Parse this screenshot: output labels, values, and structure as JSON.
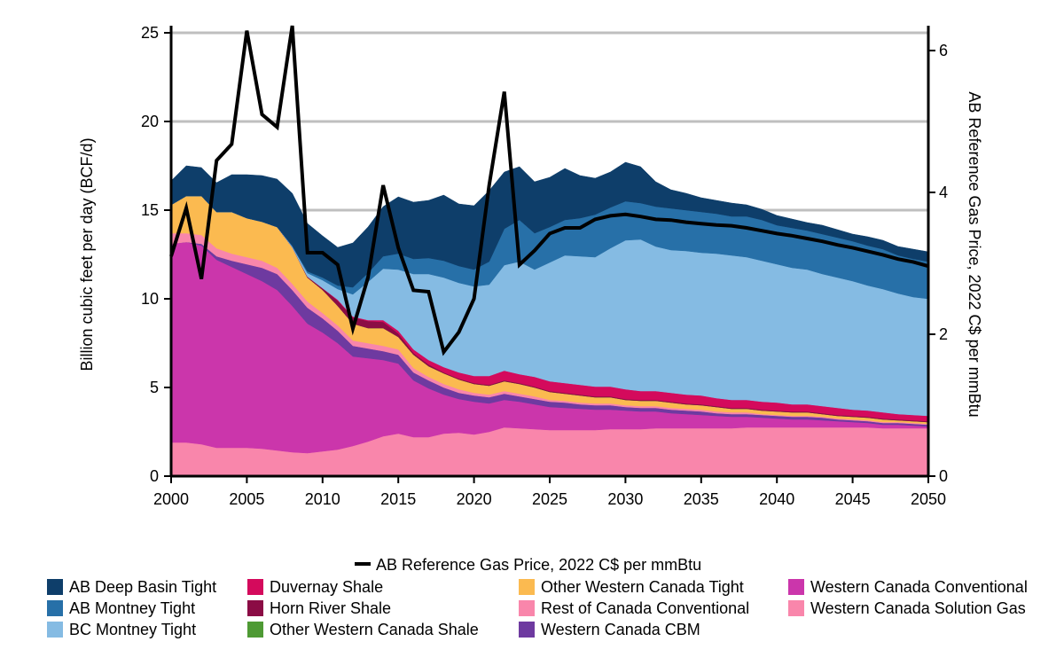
{
  "chart_data": {
    "type": "area",
    "x": [
      2000,
      2001,
      2002,
      2003,
      2004,
      2005,
      2006,
      2007,
      2008,
      2009,
      2010,
      2011,
      2012,
      2013,
      2014,
      2015,
      2016,
      2017,
      2018,
      2019,
      2020,
      2021,
      2022,
      2023,
      2024,
      2025,
      2026,
      2027,
      2028,
      2029,
      2030,
      2031,
      2032,
      2033,
      2034,
      2035,
      2036,
      2037,
      2038,
      2039,
      2040,
      2041,
      2042,
      2043,
      2044,
      2045,
      2046,
      2047,
      2048,
      2049,
      2050
    ],
    "xticks": [
      2000,
      2005,
      2010,
      2015,
      2020,
      2025,
      2030,
      2035,
      2040,
      2045,
      2050
    ],
    "xlim": [
      2000,
      2050
    ],
    "ylim": [
      0,
      25
    ],
    "yticks": [
      0,
      5,
      10,
      15,
      20,
      25
    ],
    "y2lim": [
      0,
      6.25
    ],
    "y2ticks": [
      0,
      2,
      4,
      6
    ],
    "ylabel": "Billion cubic feet per day (BCF/d)",
    "y2label": "AB Reference Gas Price, 2022 C$ per mmBtu",
    "grid": "horizontal",
    "legend_position": "bottom",
    "line_legend": "AB Reference Gas Price, 2022 C$ per mmBtu",
    "line_color": "#000000",
    "series": [
      {
        "name": "Western Canada Solution Gas",
        "color": "#F986AB",
        "values": [
          1.9,
          1.9,
          1.8,
          1.6,
          1.6,
          1.6,
          1.55,
          1.45,
          1.35,
          1.3,
          1.4,
          1.5,
          1.7,
          1.95,
          2.25,
          2.4,
          2.2,
          2.2,
          2.4,
          2.45,
          2.35,
          2.5,
          2.75,
          2.7,
          2.65,
          2.6,
          2.6,
          2.6,
          2.6,
          2.65,
          2.65,
          2.65,
          2.7,
          2.7,
          2.7,
          2.7,
          2.7,
          2.7,
          2.75,
          2.75,
          2.75,
          2.75,
          2.75,
          2.75,
          2.75,
          2.75,
          2.75,
          2.7,
          2.7,
          2.7,
          2.7
        ]
      },
      {
        "name": "Western Canada Conventional",
        "color": "#CB36AB",
        "values": [
          11.2,
          11.3,
          11.2,
          10.6,
          10.2,
          9.8,
          9.45,
          9.05,
          8.25,
          7.3,
          6.7,
          6.0,
          5.05,
          4.7,
          4.3,
          3.95,
          3.2,
          2.75,
          2.2,
          1.9,
          1.85,
          1.6,
          1.55,
          1.5,
          1.4,
          1.3,
          1.25,
          1.2,
          1.15,
          1.1,
          1.05,
          1.0,
          0.95,
          0.85,
          0.8,
          0.75,
          0.7,
          0.65,
          0.6,
          0.55,
          0.5,
          0.45,
          0.45,
          0.4,
          0.35,
          0.3,
          0.25,
          0.2,
          0.2,
          0.15,
          0.1
        ]
      },
      {
        "name": "Western Canada CBM",
        "color": "#6E3AA0",
        "values": [
          0.0,
          0.0,
          0.1,
          0.2,
          0.35,
          0.55,
          0.75,
          0.9,
          0.9,
          0.9,
          0.8,
          0.7,
          0.6,
          0.55,
          0.5,
          0.5,
          0.45,
          0.45,
          0.4,
          0.35,
          0.35,
          0.35,
          0.35,
          0.3,
          0.3,
          0.3,
          0.3,
          0.25,
          0.25,
          0.25,
          0.2,
          0.2,
          0.2,
          0.2,
          0.2,
          0.2,
          0.15,
          0.15,
          0.15,
          0.15,
          0.15,
          0.15,
          0.15,
          0.15,
          0.1,
          0.1,
          0.1,
          0.1,
          0.1,
          0.1,
          0.1
        ]
      },
      {
        "name": "Rest of Canada Conventional",
        "color": "#F986AB",
        "values": [
          0.6,
          0.5,
          0.5,
          0.45,
          0.4,
          0.4,
          0.4,
          0.35,
          0.35,
          0.35,
          0.3,
          0.3,
          0.3,
          0.3,
          0.3,
          0.3,
          0.25,
          0.2,
          0.2,
          0.2,
          0.15,
          0.15,
          0.15,
          0.15,
          0.15,
          0.1,
          0.1,
          0.1,
          0.1,
          0.1,
          0.1,
          0.1,
          0.1,
          0.1,
          0.1,
          0.1,
          0.1,
          0.1,
          0.1,
          0.05,
          0.05,
          0.05,
          0.05,
          0.05,
          0.05,
          0.05,
          0.05,
          0.05,
          0.05,
          0.05,
          0.05
        ]
      },
      {
        "name": "Other Western Canada Tight",
        "color": "#FBBA50",
        "values": [
          1.6,
          2.1,
          2.2,
          2.05,
          2.35,
          2.2,
          2.2,
          2.3,
          2.05,
          1.35,
          1.3,
          1.1,
          0.95,
          0.85,
          1.0,
          0.7,
          0.75,
          0.6,
          0.6,
          0.55,
          0.5,
          0.5,
          0.55,
          0.55,
          0.5,
          0.45,
          0.4,
          0.4,
          0.35,
          0.35,
          0.3,
          0.3,
          0.3,
          0.3,
          0.25,
          0.25,
          0.25,
          0.2,
          0.2,
          0.2,
          0.2,
          0.2,
          0.2,
          0.15,
          0.15,
          0.15,
          0.15,
          0.15,
          0.1,
          0.1,
          0.1
        ]
      },
      {
        "name": "Other Western Canada Shale",
        "color": "#4E9A34",
        "values": [
          0.0,
          0.0,
          0.0,
          0.0,
          0.0,
          0.0,
          0.0,
          0.0,
          0.0,
          0.0,
          0.0,
          0.0,
          0.0,
          0.0,
          0.0,
          0.0,
          0.0,
          0.0,
          0.0,
          0.0,
          0.0,
          0.0,
          0.0,
          0.0,
          0.0,
          0.0,
          0.0,
          0.0,
          0.0,
          0.0,
          0.0,
          0.0,
          0.0,
          0.0,
          0.0,
          0.0,
          0.0,
          0.0,
          0.0,
          0.0,
          0.0,
          0.0,
          0.0,
          0.0,
          0.0,
          0.0,
          0.0,
          0.0,
          0.0,
          0.0,
          0.0
        ]
      },
      {
        "name": "Horn River Shale",
        "color": "#8B0C45",
        "values": [
          0.0,
          0.0,
          0.0,
          0.0,
          0.0,
          0.0,
          0.0,
          0.0,
          0.0,
          0.05,
          0.1,
          0.3,
          0.35,
          0.4,
          0.35,
          0.2,
          0.1,
          0.1,
          0.05,
          0.05,
          0.05,
          0.05,
          0.05,
          0.05,
          0.05,
          0.05,
          0.05,
          0.05,
          0.05,
          0.05,
          0.05,
          0.05,
          0.05,
          0.05,
          0.05,
          0.05,
          0.05,
          0.05,
          0.05,
          0.05,
          0.05,
          0.05,
          0.05,
          0.05,
          0.05,
          0.05,
          0.05,
          0.05,
          0.05,
          0.05,
          0.05
        ]
      },
      {
        "name": "Duvernay Shale",
        "color": "#D40A5C",
        "values": [
          0.0,
          0.0,
          0.0,
          0.0,
          0.0,
          0.0,
          0.0,
          0.0,
          0.0,
          0.0,
          0.0,
          0.05,
          0.05,
          0.05,
          0.1,
          0.15,
          0.2,
          0.25,
          0.3,
          0.35,
          0.4,
          0.5,
          0.55,
          0.5,
          0.55,
          0.55,
          0.55,
          0.55,
          0.55,
          0.55,
          0.55,
          0.5,
          0.5,
          0.5,
          0.5,
          0.5,
          0.45,
          0.45,
          0.45,
          0.45,
          0.45,
          0.4,
          0.4,
          0.4,
          0.4,
          0.35,
          0.35,
          0.35,
          0.3,
          0.3,
          0.3
        ]
      },
      {
        "name": "BC Montney Tight",
        "color": "#85BBE3",
        "values": [
          0.0,
          0.0,
          0.0,
          0.0,
          0.0,
          0.0,
          0.0,
          0.0,
          0.05,
          0.2,
          0.45,
          0.6,
          1.25,
          2.15,
          2.9,
          3.45,
          4.25,
          4.85,
          5.05,
          5.05,
          5.05,
          5.15,
          5.95,
          6.35,
          6.05,
          6.7,
          7.2,
          7.25,
          7.3,
          7.8,
          8.4,
          8.55,
          8.15,
          8.05,
          8.1,
          8.05,
          8.15,
          8.15,
          8.05,
          7.95,
          7.8,
          7.7,
          7.6,
          7.45,
          7.35,
          7.25,
          7.05,
          6.95,
          6.8,
          6.65,
          6.6
        ]
      },
      {
        "name": "AB Montney Tight",
        "color": "#2770A8",
        "values": [
          0.0,
          0.0,
          0.0,
          0.0,
          0.0,
          0.0,
          0.0,
          0.0,
          0.05,
          0.1,
          0.15,
          0.2,
          0.4,
          0.5,
          0.7,
          0.9,
          0.85,
          0.9,
          0.95,
          0.95,
          0.95,
          1.3,
          2.05,
          2.35,
          2.05,
          2.0,
          2.0,
          2.15,
          2.4,
          2.3,
          2.2,
          2.05,
          2.25,
          2.35,
          2.3,
          2.3,
          2.25,
          2.2,
          2.3,
          2.3,
          2.2,
          2.25,
          2.2,
          2.25,
          2.25,
          2.25,
          2.25,
          2.25,
          2.15,
          2.15,
          2.1
        ]
      },
      {
        "name": "AB Deep Basin Tight",
        "color": "#0E3E6A",
        "values": [
          1.35,
          1.7,
          1.6,
          1.65,
          2.1,
          2.45,
          2.6,
          2.7,
          2.95,
          2.7,
          2.35,
          2.15,
          2.5,
          2.6,
          2.8,
          3.2,
          3.2,
          3.25,
          3.7,
          3.5,
          3.6,
          4.0,
          3.2,
          3.0,
          2.9,
          2.8,
          2.9,
          2.4,
          2.05,
          2.0,
          2.2,
          2.05,
          1.4,
          1.05,
          0.95,
          0.8,
          0.75,
          0.75,
          0.65,
          0.6,
          0.55,
          0.5,
          0.45,
          0.5,
          0.45,
          0.4,
          0.5,
          0.5,
          0.5,
          0.55,
          0.55
        ]
      }
    ],
    "line": {
      "name": "AB Reference Gas Price, 2022 C$ per mmBtu",
      "values": [
        3.1,
        3.78,
        2.78,
        4.45,
        4.68,
        6.28,
        5.1,
        4.92,
        6.35,
        3.15,
        3.15,
        2.98,
        2.08,
        2.8,
        4.1,
        3.22,
        2.62,
        2.6,
        1.75,
        2.03,
        2.5,
        4.1,
        5.42,
        2.98,
        3.18,
        3.42,
        3.5,
        3.5,
        3.62,
        3.67,
        3.69,
        3.66,
        3.62,
        3.61,
        3.58,
        3.56,
        3.54,
        3.53,
        3.5,
        3.46,
        3.42,
        3.39,
        3.35,
        3.31,
        3.26,
        3.22,
        3.17,
        3.12,
        3.06,
        3.02,
        2.96
      ]
    }
  }
}
